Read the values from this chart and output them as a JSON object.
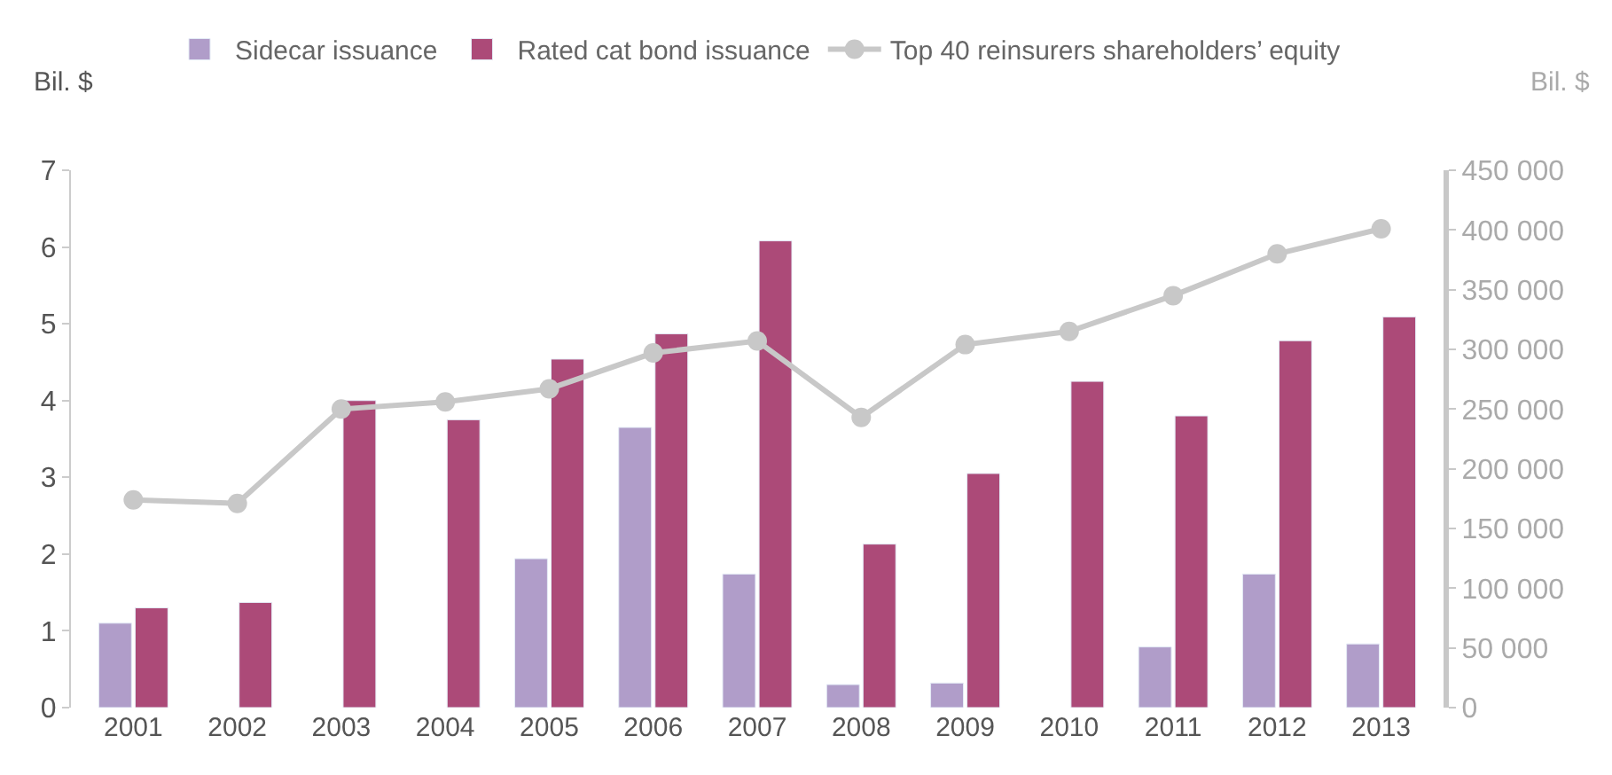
{
  "chart_data": {
    "type": "bar",
    "ylabel": "Bil. $",
    "y2label": "Bil. $",
    "categories": [
      "2001",
      "2002",
      "2003",
      "2004",
      "2005",
      "2006",
      "2007",
      "2008",
      "2009",
      "2010",
      "2011",
      "2012",
      "2013"
    ],
    "series": [
      {
        "name": "Sidecar issuance",
        "color": "#b09dc9",
        "values": [
          1.1,
          null,
          null,
          null,
          1.94,
          3.65,
          1.74,
          0.3,
          0.32,
          null,
          0.79,
          1.74,
          0.83
        ]
      },
      {
        "name": "Rated cat bond issuance",
        "color": "#ac4a78",
        "values": [
          1.3,
          1.37,
          4.0,
          3.75,
          4.54,
          4.87,
          6.08,
          2.13,
          3.05,
          4.25,
          3.8,
          4.78,
          5.09
        ]
      },
      {
        "name": "Top 40 reinsurers shareholders’ equity",
        "color": "#c8c8c8",
        "type": "line",
        "axis": "y2",
        "marker": "circle",
        "values": [
          174000,
          171000,
          250000,
          256000,
          267000,
          297000,
          307000,
          243000,
          304000,
          315000,
          345000,
          380000,
          401000
        ]
      }
    ],
    "ylim": [
      0,
      7
    ],
    "yticks": [
      0,
      1,
      2,
      3,
      4,
      5,
      6,
      7
    ],
    "y2lim": [
      0,
      450000
    ],
    "y2ticks": [
      {
        "value": 0,
        "label": "0"
      },
      {
        "value": 50000,
        "label": "50 000"
      },
      {
        "value": 100000,
        "label": "100 000"
      },
      {
        "value": 150000,
        "label": "150 000"
      },
      {
        "value": 200000,
        "label": "200 000"
      },
      {
        "value": 250000,
        "label": "250 000"
      },
      {
        "value": 300000,
        "label": "300 000"
      },
      {
        "value": 350000,
        "label": "350 000"
      },
      {
        "value": 400000,
        "label": "400 000"
      },
      {
        "value": 450000,
        "label": "450 000"
      }
    ],
    "legend": "top"
  }
}
